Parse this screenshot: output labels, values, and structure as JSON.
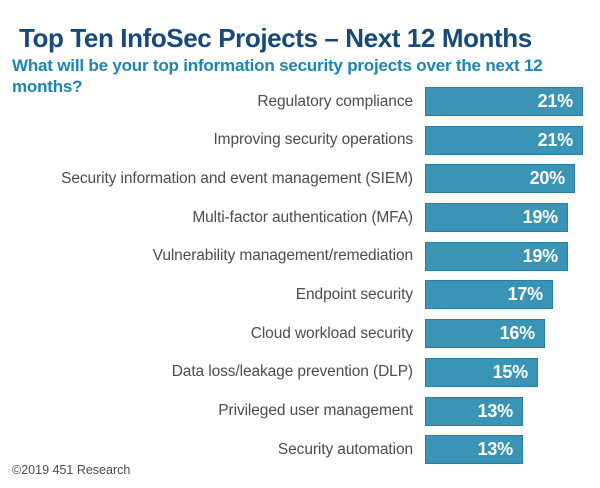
{
  "header": {
    "title": "Top Ten InfoSec Projects – Next 12 Months",
    "subtitle": "What will be your top information security projects over the next 12 months?"
  },
  "footer": {
    "copyright": "©2019 451 Research"
  },
  "colors": {
    "title": "#17497B",
    "subtitle": "#1B85B5",
    "bar": "#3994B5",
    "bar_border": "#2C7FA3",
    "label": "#4D4D4D",
    "value_text": "#FFFFFF",
    "background": "#FFFFFF"
  },
  "chart_data": {
    "type": "bar",
    "orientation": "horizontal",
    "title": "Top Ten InfoSec Projects – Next 12 Months",
    "subtitle": "What will be your top information security projects over the next 12 months?",
    "categories": [
      "Regulatory compliance",
      "Improving security operations",
      "Security information and event management (SIEM)",
      "Multi-factor authentication (MFA)",
      "Vulnerability management/remediation",
      "Endpoint security",
      "Cloud workload security",
      "Data loss/leakage prevention (DLP)",
      "Privileged user management",
      "Security automation"
    ],
    "values": [
      21,
      21,
      20,
      19,
      19,
      17,
      16,
      15,
      13,
      13
    ],
    "value_labels": [
      "21%",
      "21%",
      "20%",
      "19%",
      "19%",
      "17%",
      "16%",
      "15%",
      "13%",
      "13%"
    ],
    "unit": "%",
    "xlim": [
      0,
      21
    ],
    "value_label_position": "inside-end",
    "grid": false,
    "axes_visible": false,
    "legend": "none"
  }
}
